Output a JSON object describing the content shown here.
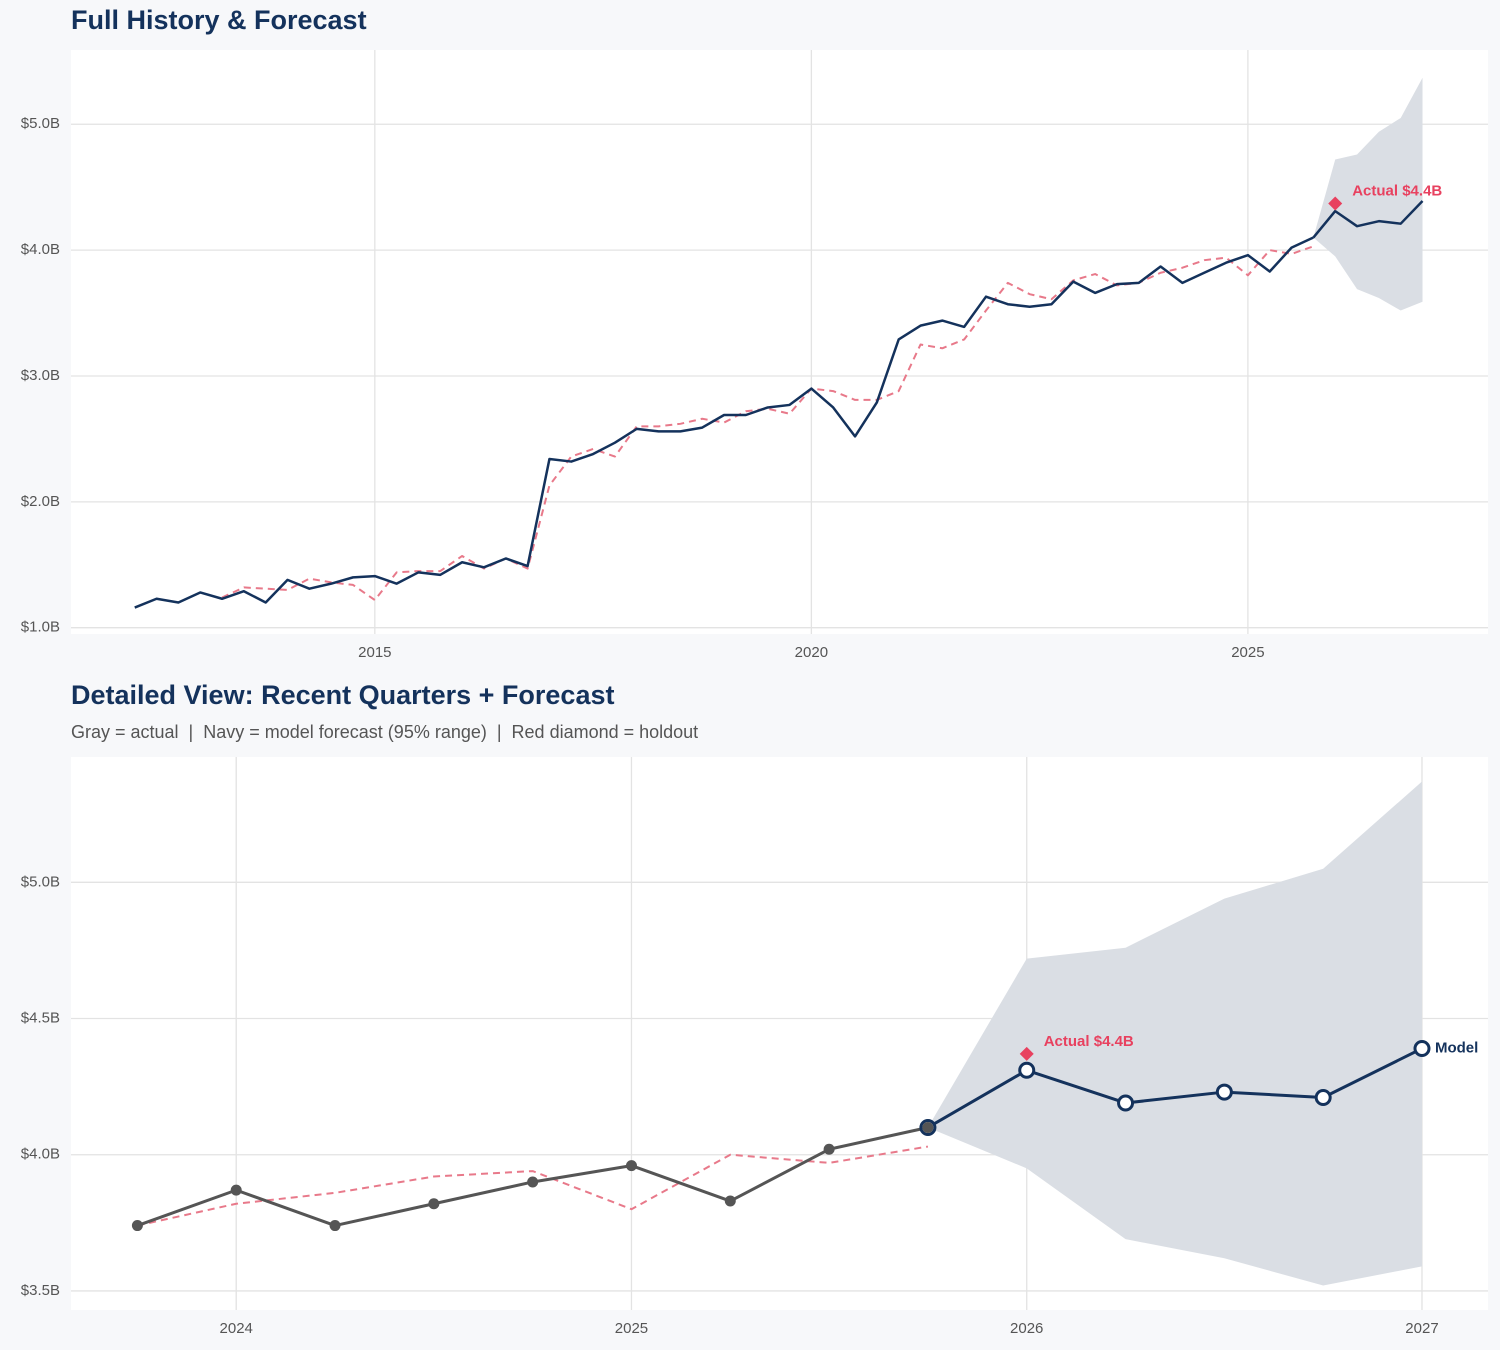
{
  "chart_data": [
    {
      "type": "line",
      "title": "Full History & Forecast",
      "x": [
        2012.25,
        2012.5,
        2012.75,
        2013,
        2013.25,
        2013.5,
        2013.75,
        2014,
        2014.25,
        2014.5,
        2014.75,
        2015,
        2015.25,
        2015.5,
        2015.75,
        2016,
        2016.25,
        2016.5,
        2016.75,
        2017,
        2017.25,
        2017.5,
        2017.75,
        2018,
        2018.25,
        2018.5,
        2018.75,
        2019,
        2019.25,
        2019.5,
        2019.75,
        2020,
        2020.25,
        2020.5,
        2020.75,
        2021,
        2021.25,
        2021.5,
        2021.75,
        2022,
        2022.25,
        2022.5,
        2022.75,
        2023,
        2023.25,
        2023.5,
        2023.75,
        2024,
        2024.25,
        2024.5,
        2024.75,
        2025,
        2025.25,
        2025.5,
        2025.75,
        2026,
        2026.25,
        2026.5,
        2026.75,
        2027
      ],
      "xlim": [
        2011.52,
        2027.75
      ],
      "xticks": [
        2015,
        2020,
        2025
      ],
      "ylim": [
        0.95,
        5.59
      ],
      "yticks": [
        {
          "value": 1,
          "label": "$1.0B"
        },
        {
          "value": 2,
          "label": "$2.0B"
        },
        {
          "value": 3,
          "label": "$3.0B"
        },
        {
          "value": 4,
          "label": "$4.0B"
        },
        {
          "value": 5,
          "label": "$5.0B"
        }
      ],
      "grid": true,
      "band": {
        "color": "#dadee4",
        "lower": [
          null,
          null,
          null,
          null,
          null,
          null,
          null,
          null,
          null,
          null,
          null,
          null,
          null,
          null,
          null,
          null,
          null,
          null,
          null,
          null,
          null,
          null,
          null,
          null,
          null,
          null,
          null,
          null,
          null,
          null,
          null,
          null,
          null,
          null,
          null,
          null,
          null,
          null,
          null,
          null,
          null,
          null,
          null,
          null,
          null,
          null,
          null,
          null,
          null,
          null,
          null,
          null,
          null,
          null,
          4.1,
          3.95,
          3.69,
          3.62,
          3.52,
          3.59
        ],
        "upper": [
          null,
          null,
          null,
          null,
          null,
          null,
          null,
          null,
          null,
          null,
          null,
          null,
          null,
          null,
          null,
          null,
          null,
          null,
          null,
          null,
          null,
          null,
          null,
          null,
          null,
          null,
          null,
          null,
          null,
          null,
          null,
          null,
          null,
          null,
          null,
          null,
          null,
          null,
          null,
          null,
          null,
          null,
          null,
          null,
          null,
          null,
          null,
          null,
          null,
          null,
          null,
          null,
          null,
          null,
          4.1,
          4.72,
          4.76,
          4.94,
          5.05,
          5.37
        ]
      },
      "series": [
        {
          "color": "#e8798a",
          "style": "dashed",
          "width": 2,
          "values": [
            null,
            null,
            null,
            null,
            1.24,
            1.32,
            1.31,
            1.3,
            1.39,
            1.36,
            1.34,
            1.22,
            1.44,
            1.45,
            1.45,
            1.57,
            1.47,
            1.55,
            1.47,
            2.13,
            2.36,
            2.42,
            2.36,
            2.6,
            2.6,
            2.62,
            2.66,
            2.63,
            2.72,
            2.74,
            2.7,
            2.9,
            2.88,
            2.81,
            2.81,
            2.88,
            3.25,
            3.22,
            3.29,
            3.52,
            3.74,
            3.65,
            3.61,
            3.76,
            3.81,
            3.72,
            3.74,
            3.82,
            3.86,
            3.92,
            3.94,
            3.8,
            4.0,
            3.97,
            4.03,
            null,
            null,
            null,
            null,
            null
          ]
        },
        {
          "color": "#14325c",
          "style": "solid",
          "width": 2.5,
          "values": [
            1.16,
            1.23,
            1.2,
            1.28,
            1.23,
            1.29,
            1.2,
            1.38,
            1.31,
            1.35,
            1.4,
            1.41,
            1.35,
            1.44,
            1.42,
            1.52,
            1.48,
            1.55,
            1.49,
            2.34,
            2.32,
            2.38,
            2.47,
            2.58,
            2.56,
            2.56,
            2.59,
            2.69,
            2.69,
            2.75,
            2.77,
            2.9,
            2.75,
            2.52,
            2.79,
            3.29,
            3.4,
            3.44,
            3.39,
            3.63,
            3.57,
            3.55,
            3.57,
            3.75,
            3.66,
            3.73,
            3.74,
            3.87,
            3.74,
            3.82,
            3.9,
            3.96,
            3.83,
            4.02,
            4.1,
            null,
            null,
            null,
            null,
            null
          ]
        },
        {
          "color": "#14325c",
          "style": "solid",
          "width": 2.5,
          "values": [
            null,
            null,
            null,
            null,
            null,
            null,
            null,
            null,
            null,
            null,
            null,
            null,
            null,
            null,
            null,
            null,
            null,
            null,
            null,
            null,
            null,
            null,
            null,
            null,
            null,
            null,
            null,
            null,
            null,
            null,
            null,
            null,
            null,
            null,
            null,
            null,
            null,
            null,
            null,
            null,
            null,
            null,
            null,
            null,
            null,
            null,
            null,
            null,
            null,
            null,
            null,
            null,
            null,
            null,
            4.1,
            4.31,
            4.19,
            4.23,
            4.21,
            4.39
          ]
        }
      ],
      "annotation": {
        "x": 2026,
        "y": 4.37,
        "text": "Actual $4.4B",
        "color": "#e8415f"
      }
    },
    {
      "type": "line",
      "title": "Detailed View: Recent Quarters + Forecast",
      "subtitle": "Gray = actual  |  Navy = model forecast (95% range)  |  Red diamond = holdout",
      "x": [
        2023.75,
        2024,
        2024.25,
        2024.5,
        2024.75,
        2025,
        2025.25,
        2025.5,
        2025.75,
        2026,
        2026.25,
        2026.5,
        2026.75,
        2027
      ],
      "xlim": [
        2023.582,
        2027.167
      ],
      "xticks": [
        2024,
        2025,
        2026,
        2027
      ],
      "ylim": [
        3.43,
        5.46
      ],
      "yticks": [
        {
          "value": 3.5,
          "label": "$3.5B"
        },
        {
          "value": 4,
          "label": "$4.0B"
        },
        {
          "value": 4.5,
          "label": "$4.5B"
        },
        {
          "value": 5,
          "label": "$5.0B"
        }
      ],
      "grid": true,
      "band": {
        "color": "#dadee4",
        "lower": [
          null,
          null,
          null,
          null,
          null,
          null,
          null,
          null,
          4.1,
          3.95,
          3.69,
          3.62,
          3.52,
          3.59
        ],
        "upper": [
          null,
          null,
          null,
          null,
          null,
          null,
          null,
          null,
          4.1,
          4.72,
          4.76,
          4.94,
          5.05,
          5.37
        ]
      },
      "series": [
        {
          "color": "#e8798a",
          "style": "dashed",
          "width": 2,
          "values": [
            3.74,
            3.82,
            3.86,
            3.92,
            3.94,
            3.8,
            4.0,
            3.97,
            4.03,
            null,
            null,
            null,
            null,
            null
          ]
        },
        {
          "color": "#555555",
          "style": "solid",
          "width": 3,
          "marker": "dot",
          "values": [
            3.74,
            3.87,
            3.74,
            3.82,
            3.9,
            3.96,
            3.83,
            4.02,
            4.1,
            null,
            null,
            null,
            null,
            null
          ]
        },
        {
          "name": "Model",
          "color": "#14325c",
          "style": "solid",
          "width": 3,
          "marker": "open",
          "values": [
            null,
            null,
            null,
            null,
            null,
            null,
            null,
            null,
            4.1,
            4.31,
            4.19,
            4.23,
            4.21,
            4.39
          ]
        }
      ],
      "annotation": {
        "x": 2026,
        "y": 4.37,
        "text": "Actual $4.4B",
        "color": "#e8415f"
      }
    }
  ]
}
